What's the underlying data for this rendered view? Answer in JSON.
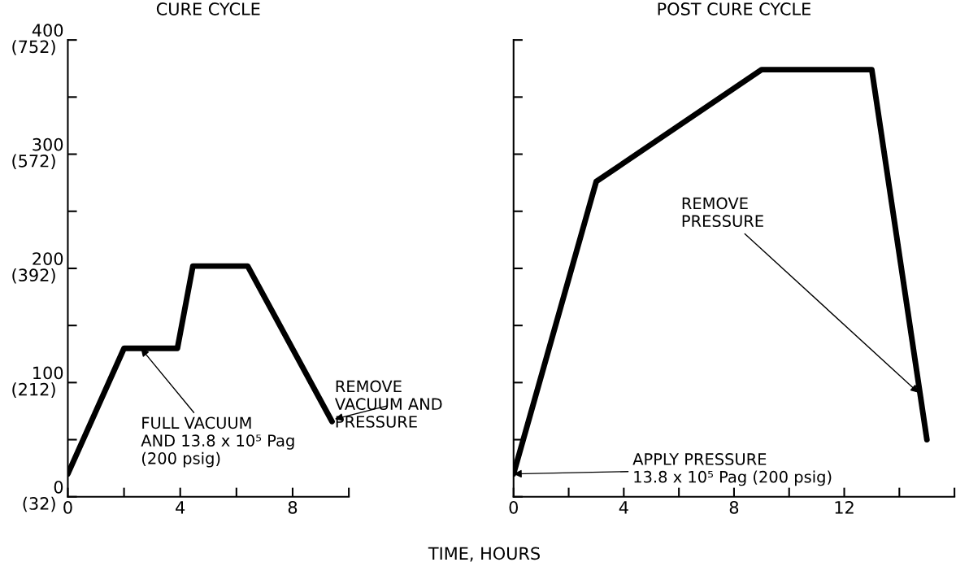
{
  "chart_data": [
    {
      "type": "line",
      "title": "CURE CYCLE",
      "xlabel": "TIME, HOURS",
      "line_style": "solid",
      "marker": "none",
      "grid": false,
      "legend": false,
      "series": [
        {
          "color": "#000000",
          "x": [
            0,
            2,
            3.9,
            4.45,
            6.4,
            9.4
          ],
          "values": [
            20,
            130,
            130,
            202,
            202,
            66
          ]
        }
      ],
      "xlim": [
        0,
        10
      ],
      "xticks": [
        0,
        {
          "value": 2,
          "label": null
        },
        4,
        {
          "value": 6,
          "label": null
        },
        8,
        {
          "value": 10,
          "label": null
        }
      ],
      "ylim": [
        0,
        400
      ],
      "yticks": [
        0,
        {
          "value": 50,
          "label": null
        },
        100,
        {
          "value": 150,
          "label": null
        },
        200,
        {
          "value": 250,
          "label": null
        },
        300,
        {
          "value": 350,
          "label": null
        },
        400
      ],
      "y2lim": [
        32,
        752
      ],
      "y2ticks": [
        {
          "value": 32,
          "label": "(32)"
        },
        {
          "value": 212,
          "label": "(212)"
        },
        {
          "value": 392,
          "label": "(392)"
        },
        {
          "value": 572,
          "label": "(572)"
        },
        {
          "value": 752,
          "label": "(752)"
        }
      ],
      "annotations": [
        {
          "text": "FULL VACUUM\nAND 13.8 x 10⁵ Pag\n(200 psig)",
          "x": 2.6,
          "y": 130
        },
        {
          "text": "REMOVE\nVACUUM AND\nPRESSURE",
          "x": 9.5,
          "y": 68
        }
      ]
    },
    {
      "type": "line",
      "title": "POST CURE CYCLE",
      "line_style": "solid",
      "marker": "none",
      "grid": false,
      "legend": false,
      "tick_labels": "x",
      "series": [
        {
          "color": "#000000",
          "x": [
            0,
            3,
            9,
            13,
            15
          ],
          "values": [
            20,
            276,
            374,
            374,
            50
          ]
        }
      ],
      "xlim": [
        0,
        16
      ],
      "xticks": [
        0,
        {
          "value": 2,
          "label": null
        },
        4,
        {
          "value": 6,
          "label": null
        },
        8,
        {
          "value": 10,
          "label": null
        },
        12,
        {
          "value": 14,
          "label": null
        },
        {
          "value": 16,
          "label": null
        }
      ],
      "ylim": [
        0,
        400
      ],
      "yticks": [
        0,
        50,
        100,
        150,
        200,
        250,
        300,
        350,
        400
      ],
      "annotations": [
        {
          "text": "REMOVE\nPRESSURE",
          "x": 14.7,
          "y": 91
        },
        {
          "text": "APPLY PRESSURE\n13.8 x 10⁵ Pag (200 psig)",
          "x": 0,
          "y": 20
        }
      ]
    }
  ]
}
